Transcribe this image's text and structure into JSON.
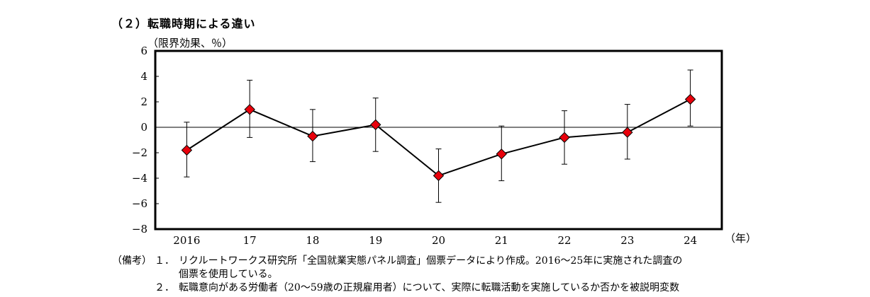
{
  "title": "（２）転職時期による違い",
  "chart_data": {
    "type": "line",
    "ylabel": "（限界効果、％）",
    "xunit": "（年）",
    "categories": [
      "2016",
      "17",
      "18",
      "19",
      "20",
      "21",
      "22",
      "23",
      "24"
    ],
    "values": [
      -1.8,
      1.4,
      -0.7,
      0.2,
      -3.8,
      -2.1,
      -0.8,
      -0.4,
      2.2
    ],
    "error_upper": [
      0.4,
      3.7,
      1.4,
      2.3,
      -1.7,
      0.1,
      1.3,
      1.8,
      4.5
    ],
    "error_lower": [
      -3.9,
      -0.8,
      -2.7,
      -1.9,
      -5.9,
      -4.2,
      -2.9,
      -2.5,
      0.1
    ],
    "ylim": [
      -8,
      6
    ],
    "yticks": [
      6,
      4,
      2,
      0,
      -2,
      -4,
      -6,
      -8
    ],
    "ytick_labels": [
      "6",
      "4",
      "2",
      "0",
      "−2",
      "−4",
      "−6",
      "−8"
    ],
    "marker": "diamond",
    "marker_color": "#e8000b",
    "line_color": "#000000",
    "zero_line": true
  },
  "notes": {
    "head": "（備考）",
    "items": [
      {
        "num": "１．",
        "lines": [
          "リクルートワークス研究所「全国就業実態パネル調査」個票データにより作成。2016～25年に実施された調査の",
          "個票を使用している。"
        ]
      },
      {
        "num": "２．",
        "lines": [
          "転職意向がある労働者（20～59歳の正規雇用者）について、実際に転職活動を実施しているか否かを被説明変数"
        ]
      }
    ]
  }
}
